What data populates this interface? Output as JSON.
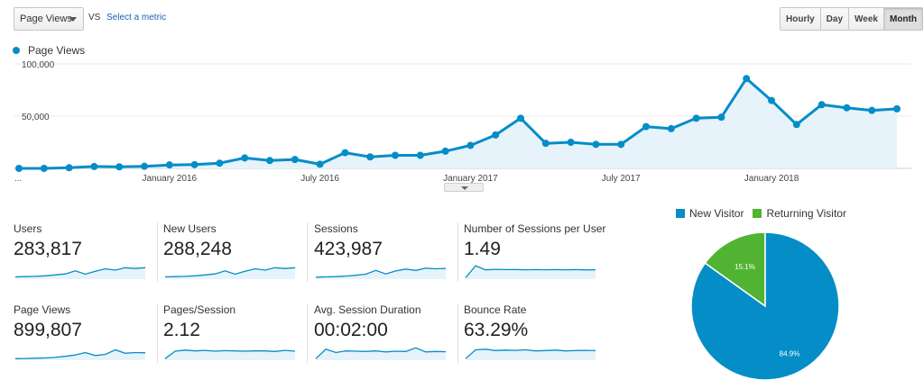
{
  "toolbar": {
    "metric": "Page Views",
    "vs": "VS",
    "select_metric": "Select a metric",
    "granularity": [
      "Hourly",
      "Day",
      "Week",
      "Month"
    ],
    "active_granularity": "Month"
  },
  "main_legend": "Page Views",
  "chart_data": [
    {
      "type": "area",
      "series": [
        {
          "name": "Page Views",
          "color": "#058dc7",
          "values": [
            0,
            0,
            600,
            1800,
            1500,
            2000,
            3300,
            3600,
            5000,
            10000,
            7500,
            8500,
            4000,
            15000,
            11000,
            12500,
            12500,
            16500,
            22000,
            32000,
            48000,
            24000,
            25000,
            23000,
            23000,
            40000,
            38000,
            48000,
            49000,
            86000,
            65000,
            42000,
            61000,
            58000,
            55500,
            57000
          ]
        }
      ],
      "y_ticks": [
        "100,000",
        "50,000"
      ],
      "ylim": [
        0,
        100000
      ],
      "x_ticks": [
        "...",
        "January 2016",
        "July 2016",
        "January 2017",
        "July 2017",
        "January 2018"
      ]
    },
    {
      "type": "pie",
      "slices": [
        {
          "name": "New Visitor",
          "value": 84.9,
          "label": "84.9%",
          "color": "#058dc7"
        },
        {
          "name": "Returning Visitor",
          "value": 15.1,
          "label": "15.1%",
          "color": "#50b432"
        }
      ]
    }
  ],
  "metrics": [
    {
      "label": "Users",
      "value": "283,817",
      "spark": [
        10,
        12,
        14,
        18,
        25,
        32,
        55,
        30,
        52,
        70,
        60,
        78,
        72,
        78
      ]
    },
    {
      "label": "New Users",
      "value": "288,248",
      "spark": [
        10,
        12,
        14,
        18,
        25,
        32,
        55,
        30,
        52,
        70,
        60,
        78,
        72,
        78
      ]
    },
    {
      "label": "Sessions",
      "value": "423,987",
      "spark": [
        8,
        10,
        12,
        16,
        22,
        30,
        58,
        32,
        54,
        68,
        58,
        75,
        70,
        72
      ]
    },
    {
      "label": "Number of Sessions per User",
      "value": "1.49",
      "spark": [
        5,
        92,
        62,
        66,
        64,
        65,
        63,
        64,
        63,
        64,
        63,
        64,
        62,
        63
      ]
    },
    {
      "label": "Page Views",
      "value": "899,807",
      "spark": [
        5,
        6,
        8,
        10,
        14,
        22,
        32,
        50,
        28,
        36,
        70,
        45,
        50,
        48
      ]
    },
    {
      "label": "Pages/Session",
      "value": "2.12",
      "spark": [
        5,
        60,
        68,
        62,
        66,
        60,
        64,
        62,
        60,
        62,
        62,
        58,
        66,
        60
      ]
    },
    {
      "label": "Avg. Session Duration",
      "value": "00:02:00",
      "spark": [
        5,
        75,
        50,
        62,
        60,
        58,
        62,
        55,
        60,
        58,
        85,
        55,
        58,
        56
      ]
    },
    {
      "label": "Bounce Rate",
      "value": "63.29%",
      "spark": [
        5,
        70,
        75,
        65,
        68,
        66,
        70,
        62,
        65,
        68,
        62,
        65,
        66,
        64
      ]
    }
  ]
}
